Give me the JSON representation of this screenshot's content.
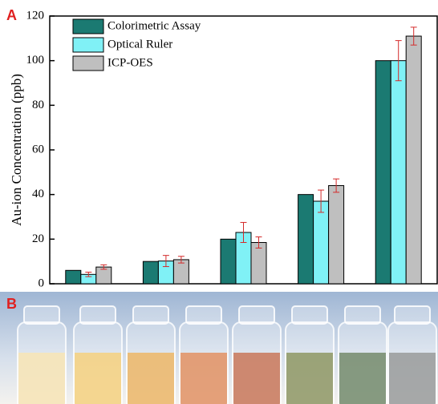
{
  "chart_data": {
    "type": "bar",
    "panel_labels": [
      "A",
      "B"
    ],
    "y_label": "Au-ion Concentration (ppb)",
    "categories": [
      null,
      null,
      null,
      null,
      null
    ],
    "series": [
      {
        "name": "Colorimetric Assay",
        "color": "#1b7a72",
        "values": [
          6,
          10,
          20,
          40,
          100
        ]
      },
      {
        "name": "Optical Ruler",
        "color": "#80f1f6",
        "values": [
          4.2,
          10.2,
          23,
          37,
          100
        ],
        "errors": [
          1,
          2.5,
          4.5,
          5,
          9
        ]
      },
      {
        "name": "ICP-OES",
        "color": "#bfbfbf",
        "values": [
          7.5,
          10.8,
          18.5,
          44,
          111
        ],
        "errors": [
          1,
          1.5,
          2.5,
          3,
          4
        ]
      }
    ],
    "error_color": "#d42a2a",
    "ylim": [
      0,
      120
    ],
    "yticks": [
      0,
      20,
      40,
      60,
      80,
      100,
      120
    ],
    "legend": "upper left"
  }
}
